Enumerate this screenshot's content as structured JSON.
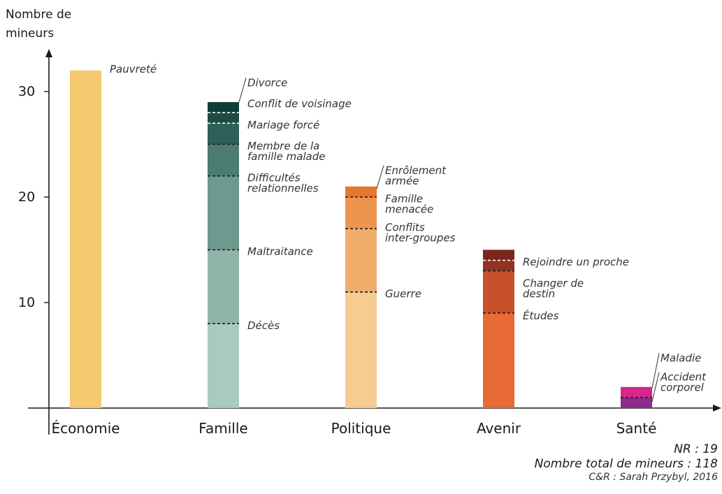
{
  "chart_data": {
    "type": "bar",
    "stacked": true,
    "ylabel": "Nombre de mineurs",
    "ylabel_lines": [
      "Nombre de",
      "mineurs"
    ],
    "ylim": [
      0,
      33
    ],
    "yticks": [
      10,
      20,
      30
    ],
    "categories": [
      "Économie",
      "Famille",
      "Politique",
      "Avenir",
      "Santé"
    ],
    "bars": [
      {
        "category": "Économie",
        "segments": [
          {
            "label": "Pauvreté",
            "from": 0,
            "to": 32,
            "color": "#f5c96e"
          }
        ]
      },
      {
        "category": "Famille",
        "segments": [
          {
            "label": "Décès",
            "from": 0,
            "to": 8,
            "color": "#a9cbbf"
          },
          {
            "label": "Maltraitance",
            "from": 8,
            "to": 15,
            "color": "#8fb5a9"
          },
          {
            "label": "Difficultés relationnelles",
            "from": 15,
            "to": 22,
            "color": "#6e998e"
          },
          {
            "label": "Membre de la famille malade",
            "from": 22,
            "to": 25,
            "color": "#4c7b72"
          },
          {
            "label": "Mariage forcé",
            "from": 25,
            "to": 27,
            "color": "#2f5f57"
          },
          {
            "label": "Conflit de voisinage",
            "from": 27,
            "to": 28,
            "color": "#1d4c45"
          },
          {
            "label": "Divorce",
            "from": 28,
            "to": 29,
            "color": "#0f3d37"
          }
        ]
      },
      {
        "category": "Politique",
        "segments": [
          {
            "label": "Guerre",
            "from": 0,
            "to": 11,
            "color": "#f6cc93"
          },
          {
            "label": "Conflits inter-groupes",
            "from": 11,
            "to": 17,
            "color": "#f1ad6c"
          },
          {
            "label": "Famille menacée",
            "from": 17,
            "to": 20,
            "color": "#ee944e"
          },
          {
            "label": "Enrôlement armée",
            "from": 20,
            "to": 21,
            "color": "#e8762f"
          }
        ]
      },
      {
        "category": "Avenir",
        "segments": [
          {
            "label": "Études",
            "from": 0,
            "to": 9,
            "color": "#e86a35"
          },
          {
            "label": "Changer de destin",
            "from": 9,
            "to": 13,
            "color": "#c7512b"
          },
          {
            "label": "Rejoindre un proche",
            "from": 13,
            "to": 14,
            "color": "#93331f"
          },
          {
            "label": "",
            "from": 14,
            "to": 15,
            "color": "#7a261b"
          }
        ]
      },
      {
        "category": "Santé",
        "segments": [
          {
            "label": "Accident corporel",
            "from": 0,
            "to": 1,
            "color": "#8b2b8c"
          },
          {
            "label": "Maladie",
            "from": 1,
            "to": 2,
            "color": "#d6268b"
          }
        ]
      }
    ],
    "segment_labels": [
      {
        "bar": 0,
        "lines": [
          "Pauvreté"
        ],
        "y": 31.8,
        "leader": false
      },
      {
        "bar": 1,
        "lines": [
          "Divorce"
        ],
        "y": 30.5,
        "leader": true,
        "leader_to": 29
      },
      {
        "bar": 1,
        "lines": [
          "Conflit de voisinage"
        ],
        "y": 28.5,
        "leader": false
      },
      {
        "bar": 1,
        "lines": [
          "Mariage forcé"
        ],
        "y": 26.5,
        "leader": false
      },
      {
        "bar": 1,
        "lines": [
          "Membre de la",
          "famille malade"
        ],
        "y": 24.5,
        "leader": false
      },
      {
        "bar": 1,
        "lines": [
          "Difficultés",
          "relationnelles"
        ],
        "y": 21.5,
        "leader": false
      },
      {
        "bar": 1,
        "lines": [
          "Maltraitance"
        ],
        "y": 14.5,
        "leader": false
      },
      {
        "bar": 1,
        "lines": [
          "Décès"
        ],
        "y": 7.5,
        "leader": false
      },
      {
        "bar": 2,
        "lines": [
          "Enrôlement",
          "armée"
        ],
        "y": 22.2,
        "leader": true,
        "leader_to": 20.8
      },
      {
        "bar": 2,
        "lines": [
          "Famille",
          "menacée"
        ],
        "y": 19.5,
        "leader": false
      },
      {
        "bar": 2,
        "lines": [
          "Conflits",
          "inter-groupes"
        ],
        "y": 16.8,
        "leader": false
      },
      {
        "bar": 2,
        "lines": [
          "Guerre"
        ],
        "y": 10.5,
        "leader": false
      },
      {
        "bar": 3,
        "lines": [
          "Rejoindre un proche"
        ],
        "y": 13.5,
        "leader": false
      },
      {
        "bar": 3,
        "lines": [
          "Changer de",
          "destin"
        ],
        "y": 11.5,
        "leader": false
      },
      {
        "bar": 3,
        "lines": [
          "Études"
        ],
        "y": 8.4,
        "leader": false
      },
      {
        "bar": 4,
        "lines": [
          "Maladie"
        ],
        "y": 4.4,
        "leader": true,
        "leader_to": 1.9
      },
      {
        "bar": 4,
        "lines": [
          "Accident",
          "corporel"
        ],
        "y": 2.6,
        "leader": true,
        "leader_to": 0.6
      }
    ]
  },
  "notes": {
    "nr": "NR : 19",
    "total": "Nombre total de mineurs : 118",
    "credit": "C&R : Sarah Przybyl, 2016"
  },
  "colors": {
    "axis": "#1a1a1a",
    "label_text": "#333333"
  }
}
